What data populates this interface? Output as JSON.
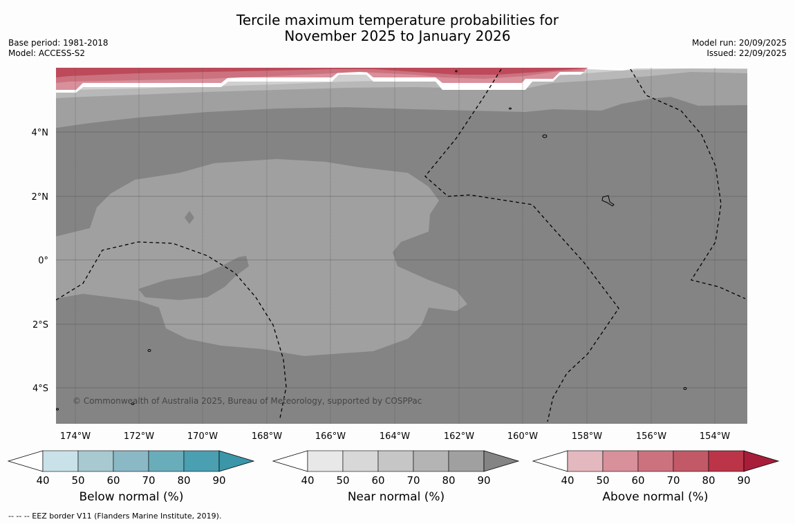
{
  "title": {
    "line1": "Tercile maximum temperature probabilities for",
    "line2": "November 2025 to January 2026"
  },
  "meta_left": {
    "base_period": "Base period: 1981-2018",
    "model": "Model: ACCESS-S2"
  },
  "meta_right": {
    "model_run": "Model run: 20/09/2025",
    "issued": "Issued: 22/09/2025"
  },
  "map": {
    "copyright": "© Commonwealth of Australia 2025, Bureau of Meteorology, supported by COSPPac",
    "lon_ticks": [
      "174°W",
      "172°W",
      "170°W",
      "168°W",
      "166°W",
      "164°W",
      "162°W",
      "160°W",
      "158°W",
      "156°W",
      "154°W"
    ],
    "lat_ticks": [
      "4°N",
      "2°N",
      "0°",
      "2°S",
      "4°S"
    ]
  },
  "colorbars": [
    {
      "label": "Below normal (%)",
      "ticks": [
        "40",
        "50",
        "60",
        "70",
        "80",
        "90"
      ],
      "colors": [
        "#ffffff",
        "#c9e2e9",
        "#a7c9cf",
        "#8bb8c5",
        "#6aadba",
        "#4a9fb0",
        "#3b96a9"
      ]
    },
    {
      "label": "Near normal (%)",
      "ticks": [
        "40",
        "50",
        "60",
        "70",
        "80",
        "90"
      ],
      "colors": [
        "#ffffff",
        "#e8e8e8",
        "#d8d8d8",
        "#c6c6c6",
        "#b4b4b4",
        "#a0a0a0",
        "#848484"
      ]
    },
    {
      "label": "Above normal (%)",
      "ticks": [
        "40",
        "50",
        "60",
        "70",
        "80",
        "90"
      ],
      "colors": [
        "#ffffff",
        "#e4b8bf",
        "#d8909b",
        "#cc727f",
        "#c25967",
        "#bc3448",
        "#a81e3a"
      ]
    }
  ],
  "footnote": "--  --  -- EEZ border V11 (Flanders Marine Institute, 2019)."
}
